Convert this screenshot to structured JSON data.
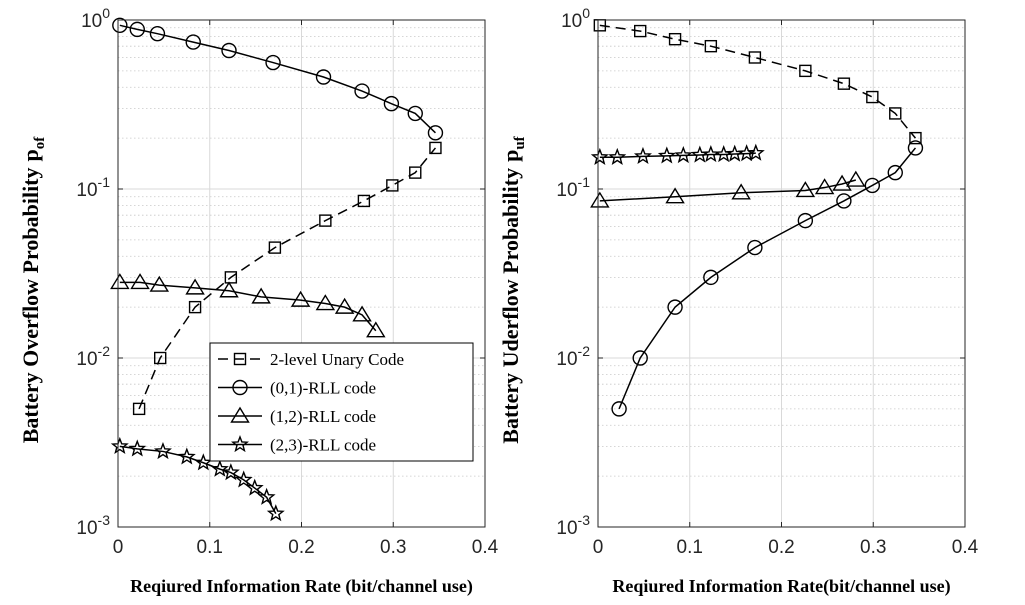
{
  "chart_data": [
    {
      "type": "line",
      "xlabel": "Reqiured Information Rate (bit/channel use)",
      "ylabel": "Battery Overflow Probability",
      "ylabel_sub": "of",
      "yscale": "log",
      "xlim": [
        0,
        0.4
      ],
      "ylim": [
        0.001,
        1
      ],
      "xticks": [
        "0",
        "0.1",
        "0.2",
        "0.3",
        "0.4"
      ],
      "yticks": [
        {
          "base": "10",
          "exp": "0"
        },
        {
          "base": "10",
          "exp": "-1"
        },
        {
          "base": "10",
          "exp": "-2"
        },
        {
          "base": "10",
          "exp": "-3"
        }
      ],
      "grid": true,
      "legend_position": "bottom-right",
      "series": [
        {
          "name": "2-level Unary Code",
          "marker": "square",
          "dash": true,
          "x": [
            0.023,
            0.046,
            0.084,
            0.123,
            0.171,
            0.226,
            0.268,
            0.299,
            0.324,
            0.346
          ],
          "y": [
            0.005,
            0.01,
            0.02,
            0.03,
            0.045,
            0.065,
            0.085,
            0.105,
            0.125,
            0.175
          ]
        },
        {
          "name": "(0,1)-RLL code",
          "marker": "circle",
          "dash": false,
          "x": [
            0.002,
            0.021,
            0.043,
            0.082,
            0.121,
            0.169,
            0.224,
            0.266,
            0.298,
            0.324,
            0.346
          ],
          "y": [
            0.93,
            0.88,
            0.83,
            0.74,
            0.66,
            0.56,
            0.46,
            0.38,
            0.32,
            0.28,
            0.215
          ]
        },
        {
          "name": "(1,2)-RLL code",
          "marker": "triangle",
          "dash": false,
          "x": [
            0.002,
            0.024,
            0.045,
            0.084,
            0.121,
            0.156,
            0.199,
            0.226,
            0.247,
            0.266,
            0.281
          ],
          "y": [
            0.028,
            0.028,
            0.027,
            0.026,
            0.025,
            0.023,
            0.022,
            0.021,
            0.02,
            0.018,
            0.0145
          ]
        },
        {
          "name": "(2,3)-RLL code",
          "marker": "star",
          "dash": false,
          "x": [
            0.002,
            0.021,
            0.049,
            0.075,
            0.093,
            0.111,
            0.123,
            0.137,
            0.149,
            0.162,
            0.172
          ],
          "y": [
            0.003,
            0.0029,
            0.0028,
            0.0026,
            0.0024,
            0.0022,
            0.0021,
            0.0019,
            0.0017,
            0.0015,
            0.0012
          ]
        }
      ]
    },
    {
      "type": "line",
      "xlabel": "Reqiured Information Rate(bit/channel use)",
      "ylabel": "Battery Uderflow Probability",
      "ylabel_sub": "uf",
      "yscale": "log",
      "xlim": [
        0,
        0.4
      ],
      "ylim": [
        0.001,
        1
      ],
      "xticks": [
        "0",
        "0.1",
        "0.2",
        "0.3",
        "0.4"
      ],
      "yticks": [
        {
          "base": "10",
          "exp": "0"
        },
        {
          "base": "10",
          "exp": "-1"
        },
        {
          "base": "10",
          "exp": "-2"
        },
        {
          "base": "10",
          "exp": "-3"
        }
      ],
      "grid": true,
      "series": [
        {
          "name": "2-level Unary Code",
          "marker": "square",
          "dash": true,
          "x": [
            0.002,
            0.046,
            0.084,
            0.123,
            0.171,
            0.226,
            0.268,
            0.299,
            0.324,
            0.346
          ],
          "y": [
            0.93,
            0.86,
            0.77,
            0.7,
            0.6,
            0.5,
            0.42,
            0.35,
            0.28,
            0.2
          ]
        },
        {
          "name": "(0,1)-RLL code",
          "marker": "circle",
          "dash": false,
          "x": [
            0.023,
            0.046,
            0.084,
            0.123,
            0.171,
            0.226,
            0.268,
            0.299,
            0.324,
            0.346
          ],
          "y": [
            0.005,
            0.01,
            0.02,
            0.03,
            0.045,
            0.065,
            0.085,
            0.105,
            0.125,
            0.175
          ]
        },
        {
          "name": "(1,2)-RLL code",
          "marker": "triangle",
          "dash": false,
          "x": [
            0.002,
            0.084,
            0.156,
            0.226,
            0.247,
            0.266,
            0.281
          ],
          "y": [
            0.085,
            0.09,
            0.095,
            0.098,
            0.102,
            0.107,
            0.113
          ]
        },
        {
          "name": "(2,3)-RLL code",
          "marker": "star",
          "dash": false,
          "x": [
            0.002,
            0.021,
            0.049,
            0.075,
            0.093,
            0.111,
            0.123,
            0.137,
            0.149,
            0.162,
            0.172
          ],
          "y": [
            0.154,
            0.154,
            0.156,
            0.157,
            0.158,
            0.159,
            0.16,
            0.16,
            0.161,
            0.162,
            0.163
          ]
        }
      ]
    }
  ]
}
